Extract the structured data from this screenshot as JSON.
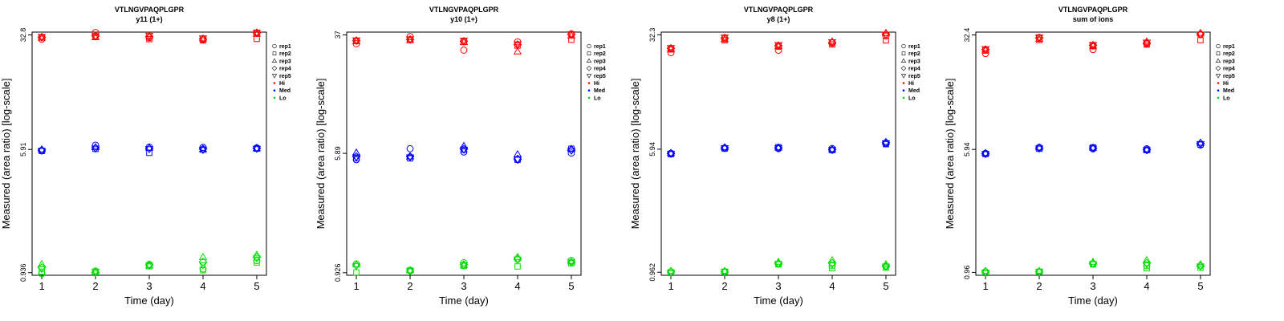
{
  "chart_data": [
    {
      "type": "scatter",
      "title": "VTLNGVPAQPLGPR",
      "subtitle": "y11 (1+)",
      "xlabel": "Time (day)",
      "ylabel": "Measured (area ratio) [log-scale]",
      "log_y": true,
      "x": [
        1,
        2,
        3,
        4,
        5
      ],
      "yticks": [
        "0.936",
        "5.91",
        "32.8"
      ],
      "ytick_values": [
        0.936,
        5.91,
        32.8
      ],
      "ylim": [
        0.9,
        34.2
      ],
      "legend": {
        "position": "right",
        "replicates": [
          {
            "name": "rep1",
            "marker": "circle"
          },
          {
            "name": "rep2",
            "marker": "square"
          },
          {
            "name": "rep3",
            "marker": "triangle-up"
          },
          {
            "name": "rep4",
            "marker": "diamond"
          },
          {
            "name": "rep5",
            "marker": "triangle-down"
          }
        ],
        "levels": [
          {
            "name": "Hi",
            "color": "#ff0000"
          },
          {
            "name": "Med",
            "color": "#0000ff"
          },
          {
            "name": "Lo",
            "color": "#00dd00"
          }
        ]
      },
      "series": [
        {
          "level": "Hi",
          "rep": "rep1",
          "values": [
            30.8,
            34.0,
            31.5,
            30.6,
            33.5
          ]
        },
        {
          "level": "Hi",
          "rep": "rep2",
          "values": [
            31.6,
            32.2,
            30.8,
            30.2,
            30.9
          ]
        },
        {
          "level": "Hi",
          "rep": "rep3",
          "values": [
            31.4,
            31.6,
            32.2,
            31.0,
            33.3
          ]
        },
        {
          "level": "Hi",
          "rep": "rep4",
          "values": [
            31.7,
            32.3,
            32.0,
            30.9,
            33.9
          ]
        },
        {
          "level": "Hi",
          "rep": "rep5",
          "values": [
            31.9,
            32.1,
            32.5,
            31.2,
            34.0
          ]
        },
        {
          "level": "Med",
          "rep": "rep1",
          "values": [
            5.82,
            6.3,
            6.12,
            6.1,
            6.05
          ]
        },
        {
          "level": "Med",
          "rep": "rep2",
          "values": [
            5.78,
            5.96,
            5.62,
            5.9,
            5.98
          ]
        },
        {
          "level": "Med",
          "rep": "rep3",
          "values": [
            5.9,
            6.1,
            6.05,
            5.92,
            6.0
          ]
        },
        {
          "level": "Med",
          "rep": "rep4",
          "values": [
            5.85,
            6.05,
            6.0,
            5.95,
            6.02
          ]
        },
        {
          "level": "Med",
          "rep": "rep5",
          "values": [
            5.8,
            6.0,
            5.95,
            5.88,
            5.98
          ]
        },
        {
          "level": "Lo",
          "rep": "rep1",
          "values": [
            0.92,
            0.96,
            1.06,
            0.99,
            1.12
          ]
        },
        {
          "level": "Lo",
          "rep": "rep2",
          "values": [
            0.95,
            0.93,
            1.03,
            0.97,
            1.09
          ]
        },
        {
          "level": "Lo",
          "rep": "rep3",
          "values": [
            1.06,
            0.95,
            1.04,
            1.18,
            1.22
          ]
        },
        {
          "level": "Lo",
          "rep": "rep4",
          "values": [
            1.01,
            0.94,
            1.05,
            1.1,
            1.18
          ]
        },
        {
          "level": "Lo",
          "rep": "rep5",
          "values": [
            0.99,
            0.95,
            1.04,
            1.05,
            1.16
          ]
        }
      ]
    },
    {
      "type": "scatter",
      "title": "VTLNGVPAQPLGPR",
      "subtitle": "y10 (1+)",
      "xlabel": "Time (day)",
      "ylabel": "Measured (area ratio) [log-scale]",
      "log_y": true,
      "x": [
        1,
        2,
        3,
        4,
        5
      ],
      "yticks": [
        "0.926",
        "5.89",
        "37"
      ],
      "ytick_values": [
        0.926,
        5.89,
        37
      ],
      "ylim": [
        0.89,
        38.6
      ],
      "legend": {
        "position": "right",
        "replicates": [
          {
            "name": "rep1",
            "marker": "circle"
          },
          {
            "name": "rep2",
            "marker": "square"
          },
          {
            "name": "rep3",
            "marker": "triangle-up"
          },
          {
            "name": "rep4",
            "marker": "diamond"
          },
          {
            "name": "rep5",
            "marker": "triangle-down"
          }
        ],
        "levels": [
          {
            "name": "Hi",
            "color": "#ff0000"
          },
          {
            "name": "Med",
            "color": "#0000ff"
          },
          {
            "name": "Lo",
            "color": "#00dd00"
          }
        ]
      },
      "series": [
        {
          "level": "Hi",
          "rep": "rep1",
          "values": [
            32.2,
            36.0,
            29.2,
            33.2,
            37.6
          ]
        },
        {
          "level": "Hi",
          "rep": "rep2",
          "values": [
            33.7,
            34.3,
            33.1,
            31.3,
            34.3
          ]
        },
        {
          "level": "Hi",
          "rep": "rep3",
          "values": [
            33.5,
            34.0,
            33.0,
            28.5,
            36.5
          ]
        },
        {
          "level": "Hi",
          "rep": "rep4",
          "values": [
            33.8,
            34.4,
            33.5,
            31.8,
            37.1
          ]
        },
        {
          "level": "Hi",
          "rep": "rep5",
          "values": [
            34.0,
            34.6,
            33.9,
            32.0,
            37.4
          ]
        },
        {
          "level": "Med",
          "rep": "rep1",
          "values": [
            5.34,
            6.33,
            6.02,
            5.34,
            5.92
          ]
        },
        {
          "level": "Med",
          "rep": "rep2",
          "values": [
            5.45,
            5.45,
            6.23,
            5.34,
            6.33
          ]
        },
        {
          "level": "Med",
          "rep": "rep3",
          "values": [
            5.95,
            5.6,
            6.6,
            5.8,
            6.3
          ]
        },
        {
          "level": "Med",
          "rep": "rep4",
          "values": [
            5.6,
            5.6,
            6.3,
            5.4,
            6.2
          ]
        },
        {
          "level": "Med",
          "rep": "rep5",
          "values": [
            5.55,
            5.55,
            6.25,
            5.35,
            6.15
          ]
        },
        {
          "level": "Lo",
          "rep": "rep1",
          "values": [
            1.06,
            0.96,
            1.08,
            1.14,
            1.12
          ]
        },
        {
          "level": "Lo",
          "rep": "rep2",
          "values": [
            0.93,
            0.96,
            1.03,
            1.02,
            1.07
          ]
        },
        {
          "level": "Lo",
          "rep": "rep3",
          "values": [
            1.05,
            0.96,
            1.04,
            1.18,
            1.1
          ]
        },
        {
          "level": "Lo",
          "rep": "rep4",
          "values": [
            1.04,
            0.95,
            1.05,
            1.15,
            1.09
          ]
        },
        {
          "level": "Lo",
          "rep": "rep5",
          "values": [
            1.03,
            0.95,
            1.04,
            1.14,
            1.09
          ]
        }
      ]
    },
    {
      "type": "scatter",
      "title": "VTLNGVPAQPLGPR",
      "subtitle": "y8 (1+)",
      "xlabel": "Time (day)",
      "ylabel": "Measured (area ratio) [log-scale]",
      "log_y": true,
      "x": [
        1,
        2,
        3,
        4,
        5
      ],
      "yticks": [
        "0.962",
        "5.94",
        "32.3"
      ],
      "ytick_values": [
        0.962,
        5.94,
        32.3
      ],
      "ylim": [
        0.92,
        33.6
      ],
      "legend": {
        "position": "right",
        "replicates": [
          {
            "name": "rep1",
            "marker": "circle"
          },
          {
            "name": "rep2",
            "marker": "square"
          },
          {
            "name": "rep3",
            "marker": "triangle-up"
          },
          {
            "name": "rep4",
            "marker": "diamond"
          },
          {
            "name": "rep5",
            "marker": "triangle-down"
          }
        ],
        "levels": [
          {
            "name": "Hi",
            "color": "#ff0000"
          },
          {
            "name": "Med",
            "color": "#0000ff"
          },
          {
            "name": "Lo",
            "color": "#00dd00"
          }
        ]
      },
      "series": [
        {
          "level": "Hi",
          "rep": "rep1",
          "values": [
            24.8,
            30.5,
            25.7,
            28.6,
            31.7
          ]
        },
        {
          "level": "Hi",
          "rep": "rep2",
          "values": [
            26.0,
            29.8,
            27.1,
            28.0,
            29.7
          ]
        },
        {
          "level": "Hi",
          "rep": "rep3",
          "values": [
            26.2,
            30.2,
            27.3,
            29.2,
            33.1
          ]
        },
        {
          "level": "Hi",
          "rep": "rep4",
          "values": [
            26.4,
            30.8,
            27.5,
            28.8,
            32.6
          ]
        },
        {
          "level": "Hi",
          "rep": "rep5",
          "values": [
            26.6,
            31.1,
            27.8,
            29.0,
            32.4
          ]
        },
        {
          "level": "Med",
          "rep": "rep1",
          "values": [
            5.59,
            6.05,
            6.0,
            6.0,
            6.47
          ]
        },
        {
          "level": "Med",
          "rep": "rep2",
          "values": [
            5.52,
            6.0,
            6.12,
            5.86,
            6.4
          ]
        },
        {
          "level": "Med",
          "rep": "rep3",
          "values": [
            5.6,
            6.1,
            6.08,
            5.92,
            6.6
          ]
        },
        {
          "level": "Med",
          "rep": "rep4",
          "values": [
            5.58,
            6.06,
            6.06,
            5.9,
            6.55
          ]
        },
        {
          "level": "Med",
          "rep": "rep5",
          "values": [
            5.56,
            6.04,
            6.04,
            5.88,
            6.5
          ]
        },
        {
          "level": "Lo",
          "rep": "rep1",
          "values": [
            0.97,
            0.97,
            1.09,
            1.06,
            1.05
          ]
        },
        {
          "level": "Lo",
          "rep": "rep2",
          "values": [
            0.95,
            0.97,
            1.08,
            1.02,
            1.03
          ]
        },
        {
          "level": "Lo",
          "rep": "rep3",
          "values": [
            0.98,
            0.98,
            1.12,
            1.15,
            1.08
          ]
        },
        {
          "level": "Lo",
          "rep": "rep4",
          "values": [
            0.97,
            0.97,
            1.1,
            1.1,
            1.06
          ]
        },
        {
          "level": "Lo",
          "rep": "rep5",
          "values": [
            0.96,
            0.97,
            1.09,
            1.08,
            1.05
          ]
        }
      ]
    },
    {
      "type": "scatter",
      "title": "VTLNGVPAQPLGPR",
      "subtitle": "sum of ions",
      "xlabel": "Time (day)",
      "ylabel": "Measured (area ratio) [log-scale]",
      "log_y": true,
      "x": [
        1,
        2,
        3,
        4,
        5
      ],
      "yticks": [
        "0.96",
        "5.94",
        "32.4"
      ],
      "ytick_values": [
        0.96,
        5.94,
        32.4
      ],
      "ylim": [
        0.92,
        33.8
      ],
      "legend": {
        "position": "right",
        "replicates": [
          {
            "name": "rep1",
            "marker": "circle"
          },
          {
            "name": "rep2",
            "marker": "square"
          },
          {
            "name": "rep3",
            "marker": "triangle-up"
          },
          {
            "name": "rep4",
            "marker": "diamond"
          },
          {
            "name": "rep5",
            "marker": "triangle-down"
          }
        ],
        "levels": [
          {
            "name": "Hi",
            "color": "#ff0000"
          },
          {
            "name": "Med",
            "color": "#0000ff"
          },
          {
            "name": "Lo",
            "color": "#00dd00"
          }
        ]
      },
      "series": [
        {
          "level": "Hi",
          "rep": "rep1",
          "values": [
            24.6,
            31.2,
            26.1,
            28.5,
            32.6
          ]
        },
        {
          "level": "Hi",
          "rep": "rep2",
          "values": [
            25.7,
            30.1,
            27.4,
            28.1,
            30.0
          ]
        },
        {
          "level": "Hi",
          "rep": "rep3",
          "values": [
            25.9,
            30.5,
            27.6,
            29.3,
            33.3
          ]
        },
        {
          "level": "Hi",
          "rep": "rep4",
          "values": [
            26.1,
            31.0,
            27.8,
            28.8,
            32.9
          ]
        },
        {
          "level": "Hi",
          "rep": "rep5",
          "values": [
            26.3,
            31.3,
            28.0,
            29.0,
            32.7
          ]
        },
        {
          "level": "Med",
          "rep": "rep1",
          "values": [
            5.6,
            6.12,
            6.0,
            6.0,
            6.34
          ]
        },
        {
          "level": "Med",
          "rep": "rep2",
          "values": [
            5.55,
            6.0,
            6.12,
            5.88,
            6.4
          ]
        },
        {
          "level": "Med",
          "rep": "rep3",
          "values": [
            5.62,
            6.1,
            6.08,
            5.92,
            6.55
          ]
        },
        {
          "level": "Med",
          "rep": "rep4",
          "values": [
            5.58,
            6.06,
            6.06,
            5.9,
            6.5
          ]
        },
        {
          "level": "Med",
          "rep": "rep5",
          "values": [
            5.56,
            6.04,
            6.04,
            5.88,
            6.45
          ]
        },
        {
          "level": "Lo",
          "rep": "rep1",
          "values": [
            0.97,
            0.97,
            1.09,
            1.06,
            1.06
          ]
        },
        {
          "level": "Lo",
          "rep": "rep2",
          "values": [
            0.95,
            0.97,
            1.08,
            1.02,
            1.03
          ]
        },
        {
          "level": "Lo",
          "rep": "rep3",
          "values": [
            0.98,
            0.98,
            1.12,
            1.15,
            1.08
          ]
        },
        {
          "level": "Lo",
          "rep": "rep4",
          "values": [
            0.97,
            0.97,
            1.1,
            1.1,
            1.06
          ]
        },
        {
          "level": "Lo",
          "rep": "rep5",
          "values": [
            0.96,
            0.97,
            1.09,
            1.08,
            1.05
          ]
        }
      ]
    }
  ]
}
